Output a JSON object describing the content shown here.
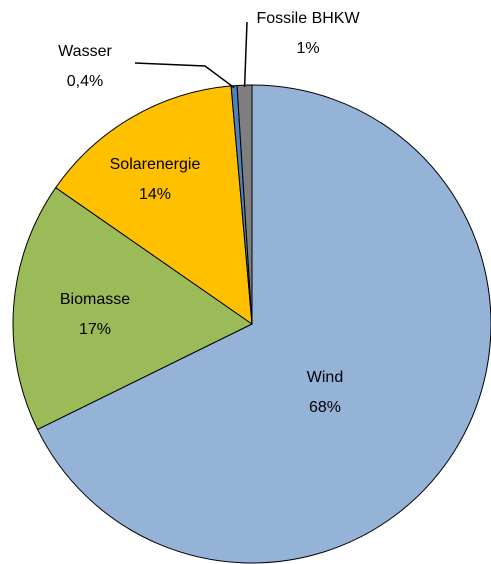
{
  "chart_data": {
    "type": "pie",
    "categories": [
      "Wind",
      "Biomasse",
      "Solarenergie",
      "Wasser",
      "Fossile BHKW"
    ],
    "values": [
      68,
      17,
      14,
      0.4,
      1
    ],
    "value_labels": [
      "68%",
      "17%",
      "14%",
      "0,4%",
      "1%"
    ],
    "colors": [
      "#95b3d7",
      "#9bbb59",
      "#ffc000",
      "#4f81bd",
      "#7f7f7f"
    ]
  }
}
